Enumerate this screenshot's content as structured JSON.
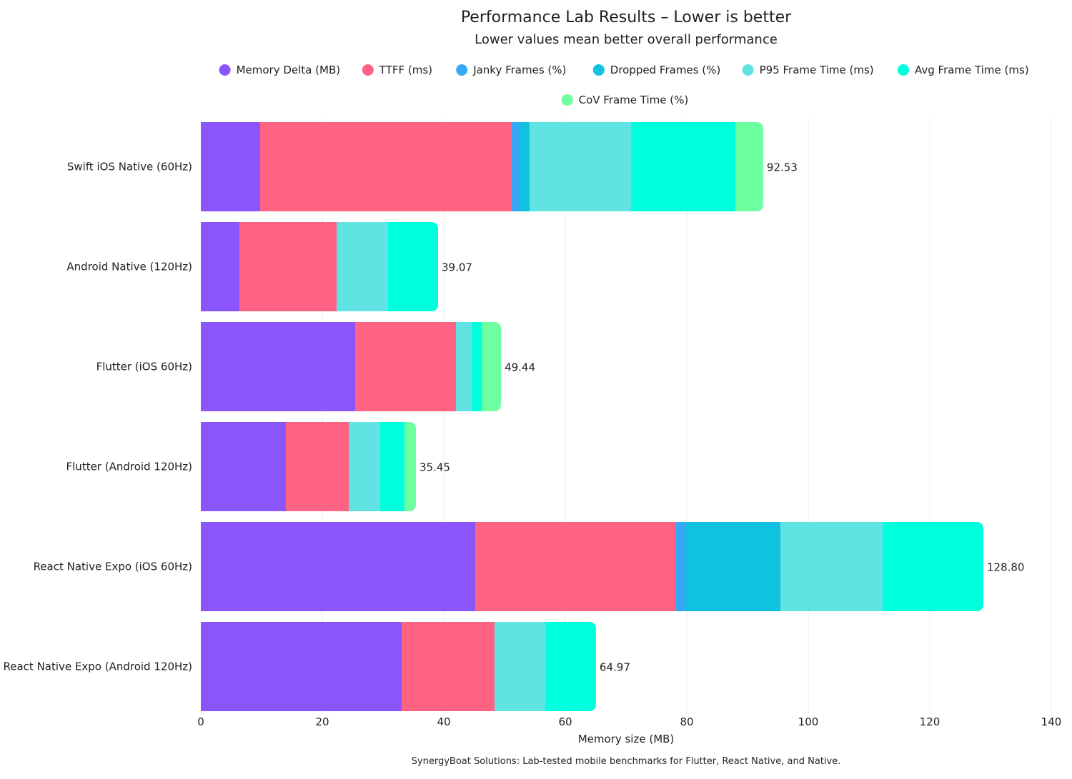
{
  "chart_data": {
    "type": "bar",
    "orientation": "horizontal",
    "stacked": true,
    "title": "Performance Lab Results – Lower is better",
    "subtitle": "Lower values mean better overall performance",
    "xlabel": "Memory size (MB)",
    "ylabel": "",
    "xlim": [
      0,
      140
    ],
    "xticks": [
      0,
      20,
      40,
      60,
      80,
      100,
      120,
      140
    ],
    "grid": true,
    "legend_position": "top",
    "footer": "SynergyBoat Solutions: Lab-tested mobile benchmarks for Flutter, React Native, and Native.",
    "categories": [
      "Swift iOS Native (60Hz)",
      "Android Native (120Hz)",
      "Flutter (iOS 60Hz)",
      "Flutter (Android 120Hz)",
      "React Native Expo (iOS 60Hz)",
      "React Native Expo (Android 120Hz)"
    ],
    "totals": [
      "92.53",
      "39.07",
      "49.44",
      "35.45",
      "128.80",
      "64.97"
    ],
    "series": [
      {
        "name": "Memory Delta (MB)",
        "color": "#8b55fc",
        "values": [
          9.76,
          6.35,
          25.41,
          14.0,
          45.18,
          33.06
        ]
      },
      {
        "name": "TTFF (ms)",
        "color": "#ff6384",
        "values": [
          41.41,
          16.0,
          16.59,
          10.35,
          32.94,
          15.29
        ]
      },
      {
        "name": "Janky Frames (%)",
        "color": "#36a8f5",
        "values": [
          1.41,
          0,
          0,
          0,
          1.76,
          0
        ]
      },
      {
        "name": "Dropped Frames (%)",
        "color": "#10c2e0",
        "values": [
          1.53,
          0,
          0,
          0,
          15.53,
          0
        ]
      },
      {
        "name": "P95 Frame Time (ms)",
        "color": "#62e3e3",
        "values": [
          16.7,
          8.47,
          2.59,
          5.18,
          16.82,
          8.35
        ]
      },
      {
        "name": "Avg Frame Time (ms)",
        "color": "#00ffdd",
        "values": [
          17.18,
          8.24,
          1.65,
          4.0,
          16.59,
          8.35
        ]
      },
      {
        "name": "CoV Frame Time (%)",
        "color": "#6dffa0",
        "values": [
          4.59,
          0,
          3.18,
          1.88,
          0,
          0
        ]
      }
    ]
  }
}
